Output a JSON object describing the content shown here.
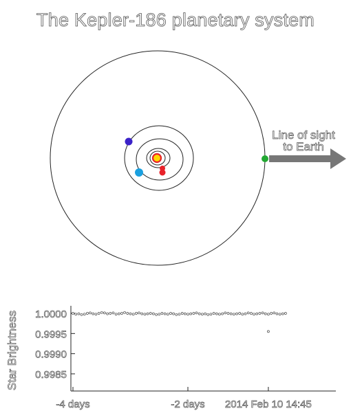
{
  "title": "The Kepler-186 planetary system",
  "colors": {
    "star_fill": "#ffd800",
    "star_ring": "#e8222a",
    "planet_b": "#e8222a",
    "planet_c": "#e8222a",
    "planet_d": "#1aa0e0",
    "planet_e": "#3b22c8",
    "planet_f": "#22a832",
    "arrow": "#777777",
    "orbit": "#222222"
  },
  "orbit_diagram": {
    "arrow_label_line1": "Line of sight",
    "arrow_label_line2": "to Earth",
    "planets_shown": 5
  },
  "chart_data": {
    "type": "scatter",
    "title": "",
    "xlabel": "",
    "ylabel": "Star Brightness",
    "x_unit": "days",
    "xlim": [
      -4.1,
      -0.3
    ],
    "ylim": [
      0.99775,
      1.00015
    ],
    "y_ticks": [
      1.0,
      0.9995,
      0.999,
      0.9985
    ],
    "y_tick_labels": [
      "1.0000",
      "0.9995",
      "0.9990",
      "0.9985"
    ],
    "x_ticks": [
      -4,
      -2,
      -0.6
    ],
    "x_tick_labels": [
      "-4 days",
      "-2 days",
      "2014 Feb 10 14:45"
    ],
    "grid": false,
    "series": [
      {
        "x_start": -4.0,
        "x_step": 0.05,
        "values": [
          1.0,
          0.99998,
          0.99999,
          0.99997,
          0.99998,
          1.0,
          1.00001,
          0.99999,
          0.99998,
          1.0,
          1.00002,
          1.00001,
          0.99999,
          1.0,
          1.00001,
          0.99998,
          0.99999,
          1.0,
          1.00002,
          1.0,
          0.99999,
          0.99998,
          1.0,
          1.00001,
          0.99999,
          0.99998,
          0.99999,
          1.0,
          0.99999,
          0.99997,
          0.99998,
          1.0,
          0.99999,
          0.99998,
          1.0,
          0.99999,
          0.99997,
          0.99998,
          1.0,
          0.99999,
          0.99998,
          0.99999,
          1.0,
          1.00001,
          0.99999,
          0.99998,
          0.99999,
          0.99997,
          0.99998,
          1.0,
          0.99999,
          0.99998,
          0.99999,
          1.00001,
          1.0,
          0.99999,
          0.99998,
          0.99999,
          1.0,
          0.99998,
          0.99999,
          1.00001,
          1.0,
          0.99998,
          0.99999,
          1.0,
          1.00001,
          0.99999,
          0.99998,
          1.0,
          1.00001,
          0.99999,
          0.99998,
          0.99999,
          1.0
        ]
      },
      {
        "x": [
          -0.6
        ],
        "values": [
          0.99955
        ]
      }
    ]
  }
}
